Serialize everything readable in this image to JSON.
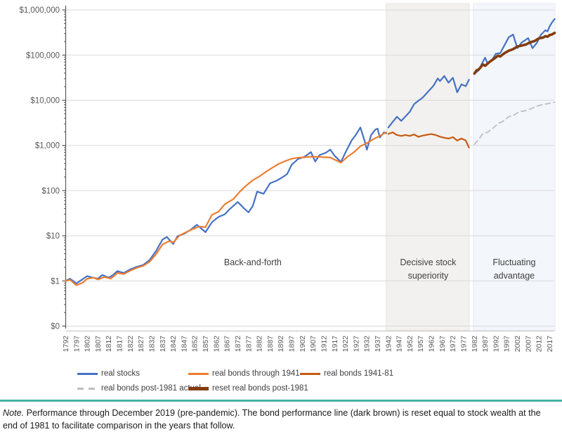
{
  "note": {
    "label": "Note.",
    "text": "Performance through December 2019 (pre-pandemic). The bond performance line (dark brown) is reset equal to stock wealth at the end of 1981 to facilitate comparison in the years that follow."
  },
  "chart_data": {
    "type": "line",
    "title": "",
    "xlabel": "",
    "ylabel": "",
    "y_axis": {
      "scale": "log",
      "tick_labels": [
        "$0",
        "$1",
        "$10",
        "$100",
        "$1,000",
        "$10,000",
        "$100,000",
        "$1,000,000"
      ],
      "ylim": [
        "$0",
        "$1,000,000"
      ],
      "grid": true
    },
    "x_axis": {
      "first": 1792,
      "last": 2017,
      "step": 5,
      "rotated_labels": true
    },
    "regions": [
      {
        "name": "decisive-stock-superiority",
        "start_year": 1941,
        "end_year": 1979.6,
        "fill": "#F2F1EF",
        "stroke": "#E5E4E1"
      },
      {
        "name": "fluctuating-advantage",
        "start_year": 1981.5,
        "end_year": 2019.5,
        "fill": "#F3F6FB",
        "stroke": "#E5EAF2"
      }
    ],
    "annotations": [
      {
        "name": "back-and-forth",
        "lines": [
          "Back-and-forth"
        ],
        "center_year": 1879,
        "y": 377
      },
      {
        "name": "decisive-stock-superiority",
        "lines": [
          "Decisive stock",
          "superiority"
        ],
        "center_year": 1960.5,
        "y": 377
      },
      {
        "name": "fluctuating-advantage",
        "lines": [
          "Fluctuating",
          "advantage"
        ],
        "center_year": 2000.5,
        "y": 377
      }
    ],
    "series": [
      {
        "name": "real stocks",
        "color": "#4472C4",
        "width": 2.2,
        "dash": "",
        "segments": [
          [
            [
              1792,
              1.0
            ],
            [
              1794,
              1.12
            ],
            [
              1797,
              0.88
            ],
            [
              1799,
              1.02
            ],
            [
              1802,
              1.28
            ],
            [
              1804,
              1.2
            ],
            [
              1807,
              1.12
            ],
            [
              1809,
              1.35
            ],
            [
              1812,
              1.18
            ],
            [
              1814,
              1.35
            ],
            [
              1816,
              1.65
            ],
            [
              1819,
              1.5
            ],
            [
              1822,
              1.8
            ],
            [
              1825,
              2.05
            ],
            [
              1828,
              2.25
            ],
            [
              1831,
              2.9
            ],
            [
              1834,
              4.6
            ],
            [
              1837,
              8.2
            ],
            [
              1839,
              9.4
            ],
            [
              1842,
              6.6
            ],
            [
              1844,
              9.8
            ],
            [
              1847,
              11
            ],
            [
              1850,
              13.5
            ],
            [
              1853,
              17.5
            ],
            [
              1857,
              12
            ],
            [
              1860,
              20
            ],
            [
              1863,
              26
            ],
            [
              1866,
              30
            ],
            [
              1868,
              38
            ],
            [
              1870,
              46
            ],
            [
              1872,
              56
            ],
            [
              1875,
              40
            ],
            [
              1877,
              33
            ],
            [
              1879,
              46
            ],
            [
              1881,
              95
            ],
            [
              1884,
              85
            ],
            [
              1887,
              145
            ],
            [
              1890,
              165
            ],
            [
              1893,
              200
            ],
            [
              1895,
              235
            ],
            [
              1897,
              370
            ],
            [
              1900,
              500
            ],
            [
              1903,
              560
            ],
            [
              1906,
              710
            ],
            [
              1908,
              440
            ],
            [
              1910,
              610
            ],
            [
              1913,
              690
            ],
            [
              1915,
              810
            ],
            [
              1917,
              590
            ],
            [
              1920,
              430
            ],
            [
              1922,
              690
            ],
            [
              1925,
              1300
            ],
            [
              1927,
              1750
            ],
            [
              1929,
              2500
            ],
            [
              1931,
              1250
            ],
            [
              1932,
              800
            ],
            [
              1934,
              1700
            ],
            [
              1936,
              2250
            ],
            [
              1937,
              2350
            ],
            [
              1938,
              1500
            ],
            [
              1940,
              1950
            ],
            [
              1941,
              1850
            ]
          ],
          [
            [
              1942,
              2500
            ],
            [
              1944,
              3300
            ],
            [
              1946,
              4300
            ],
            [
              1948,
              3500
            ],
            [
              1950,
              4400
            ],
            [
              1952,
              5600
            ],
            [
              1954,
              8200
            ],
            [
              1956,
              9800
            ],
            [
              1958,
              11500
            ],
            [
              1961,
              16500
            ],
            [
              1963,
              21000
            ],
            [
              1965,
              30500
            ],
            [
              1966,
              26500
            ],
            [
              1968,
              34500
            ],
            [
              1970,
              24500
            ],
            [
              1972,
              31500
            ],
            [
              1974,
              15000
            ],
            [
              1976,
              22500
            ],
            [
              1978,
              20500
            ],
            [
              1979.5,
              28500
            ]
          ],
          [
            [
              1982,
              39000
            ],
            [
              1984,
              46000
            ],
            [
              1986,
              72000
            ],
            [
              1987,
              88000
            ],
            [
              1988,
              67000
            ],
            [
              1990,
              76000
            ],
            [
              1992,
              107000
            ],
            [
              1994,
              110000
            ],
            [
              1996,
              165000
            ],
            [
              1998,
              250000
            ],
            [
              2000,
              285000
            ],
            [
              2002,
              142000
            ],
            [
              2004,
              190000
            ],
            [
              2006,
              220000
            ],
            [
              2007,
              238000
            ],
            [
              2009,
              142000
            ],
            [
              2011,
              185000
            ],
            [
              2013,
              285000
            ],
            [
              2015,
              355000
            ],
            [
              2016,
              335000
            ],
            [
              2017,
              430000
            ],
            [
              2018,
              520000
            ],
            [
              2019.3,
              630000
            ]
          ]
        ]
      },
      {
        "name": "real bonds through 1941",
        "color": "#ED7D31",
        "width": 2.2,
        "dash": "",
        "segments": [
          [
            [
              1792,
              1.0
            ],
            [
              1794,
              1.06
            ],
            [
              1797,
              0.8
            ],
            [
              1800,
              0.92
            ],
            [
              1802,
              1.12
            ],
            [
              1805,
              1.18
            ],
            [
              1807,
              1.08
            ],
            [
              1810,
              1.22
            ],
            [
              1813,
              1.12
            ],
            [
              1816,
              1.5
            ],
            [
              1819,
              1.42
            ],
            [
              1822,
              1.68
            ],
            [
              1825,
              1.95
            ],
            [
              1828,
              2.15
            ],
            [
              1831,
              2.65
            ],
            [
              1834,
              3.9
            ],
            [
              1837,
              6.4
            ],
            [
              1840,
              7.6
            ],
            [
              1842,
              7.1
            ],
            [
              1845,
              10.2
            ],
            [
              1848,
              12
            ],
            [
              1851,
              14
            ],
            [
              1854,
              16
            ],
            [
              1857,
              15.5
            ],
            [
              1860,
              29
            ],
            [
              1863,
              34
            ],
            [
              1866,
              50
            ],
            [
              1870,
              65
            ],
            [
              1873,
              95
            ],
            [
              1876,
              130
            ],
            [
              1879,
              170
            ],
            [
              1882,
              205
            ],
            [
              1885,
              260
            ],
            [
              1888,
              320
            ],
            [
              1891,
              390
            ],
            [
              1894,
              450
            ],
            [
              1897,
              505
            ],
            [
              1900,
              535
            ],
            [
              1903,
              545
            ],
            [
              1906,
              565
            ],
            [
              1909,
              560
            ],
            [
              1912,
              550
            ],
            [
              1915,
              540
            ],
            [
              1917,
              485
            ],
            [
              1920,
              415
            ],
            [
              1923,
              560
            ],
            [
              1926,
              705
            ],
            [
              1929,
              960
            ],
            [
              1932,
              1120
            ],
            [
              1935,
              1370
            ],
            [
              1938,
              1620
            ],
            [
              1941,
              1950
            ]
          ]
        ]
      },
      {
        "name": "real bonds 1941-81",
        "color": "#C55A11",
        "width": 2.2,
        "dash": "",
        "segments": [
          [
            [
              1942,
              1800
            ],
            [
              1944,
              1950
            ],
            [
              1946,
              1700
            ],
            [
              1948,
              1620
            ],
            [
              1950,
              1700
            ],
            [
              1952,
              1620
            ],
            [
              1954,
              1750
            ],
            [
              1956,
              1550
            ],
            [
              1958,
              1650
            ],
            [
              1960,
              1720
            ],
            [
              1962,
              1780
            ],
            [
              1964,
              1700
            ],
            [
              1966,
              1560
            ],
            [
              1968,
              1480
            ],
            [
              1970,
              1420
            ],
            [
              1972,
              1520
            ],
            [
              1974,
              1280
            ],
            [
              1976,
              1420
            ],
            [
              1978,
              1280
            ],
            [
              1979.5,
              900
            ]
          ]
        ]
      },
      {
        "name": "real bonds post-1981 actual",
        "color": "#BFBFBF",
        "width": 1.8,
        "dash": "7 5",
        "segments": [
          [
            [
              1982,
              1050
            ],
            [
              1984,
              1350
            ],
            [
              1986,
              1850
            ],
            [
              1988,
              1950
            ],
            [
              1990,
              2250
            ],
            [
              1993,
              3050
            ],
            [
              1995,
              3350
            ],
            [
              1998,
              4350
            ],
            [
              2000,
              4600
            ],
            [
              2003,
              5600
            ],
            [
              2006,
              5900
            ],
            [
              2008,
              6400
            ],
            [
              2011,
              7400
            ],
            [
              2014,
              8100
            ],
            [
              2016,
              8400
            ],
            [
              2018,
              8800
            ],
            [
              2019.3,
              9000
            ]
          ]
        ]
      },
      {
        "name": "reset real bonds post-1981",
        "color": "#843C0C",
        "width": 3.6,
        "dash": "",
        "segments": [
          [
            [
              1982,
              39000
            ],
            [
              1983,
              46000
            ],
            [
              1984,
              48000
            ],
            [
              1986,
              62000
            ],
            [
              1987,
              58000
            ],
            [
              1989,
              70000
            ],
            [
              1991,
              82000
            ],
            [
              1993,
              97000
            ],
            [
              1994,
              93000
            ],
            [
              1996,
              110000
            ],
            [
              1998,
              125000
            ],
            [
              2000,
              135000
            ],
            [
              2002,
              155000
            ],
            [
              2004,
              162000
            ],
            [
              2006,
              172000
            ],
            [
              2008,
              192000
            ],
            [
              2010,
              205000
            ],
            [
              2012,
              235000
            ],
            [
              2014,
              245000
            ],
            [
              2015,
              262000
            ],
            [
              2016,
              255000
            ],
            [
              2017,
              278000
            ],
            [
              2018,
              285000
            ],
            [
              2019.3,
              310000
            ]
          ]
        ]
      }
    ],
    "legend": {
      "rows": [
        [
          {
            "label": "real stocks",
            "color": "#4472C4",
            "style": "solid"
          },
          {
            "label": "real bonds through 1941",
            "color": "#ED7D31",
            "style": "solid"
          },
          {
            "label": "real bonds 1941-81",
            "color": "#C55A11",
            "style": "solid"
          }
        ],
        [
          {
            "label": "real bonds post-1981 actual",
            "color": "#BFBFBF",
            "style": "dashed"
          },
          {
            "label": "reset real bonds post-1981",
            "color": "#843C0C",
            "style": "thick"
          }
        ]
      ]
    },
    "style_colors": {
      "gridline": "#D9D9D9",
      "axis_line": "#595959",
      "x_axis_line": "#BFBFBF",
      "tick_label": "#595959",
      "annotation_text": "#404040",
      "note_rule": "#44B3A1"
    }
  }
}
